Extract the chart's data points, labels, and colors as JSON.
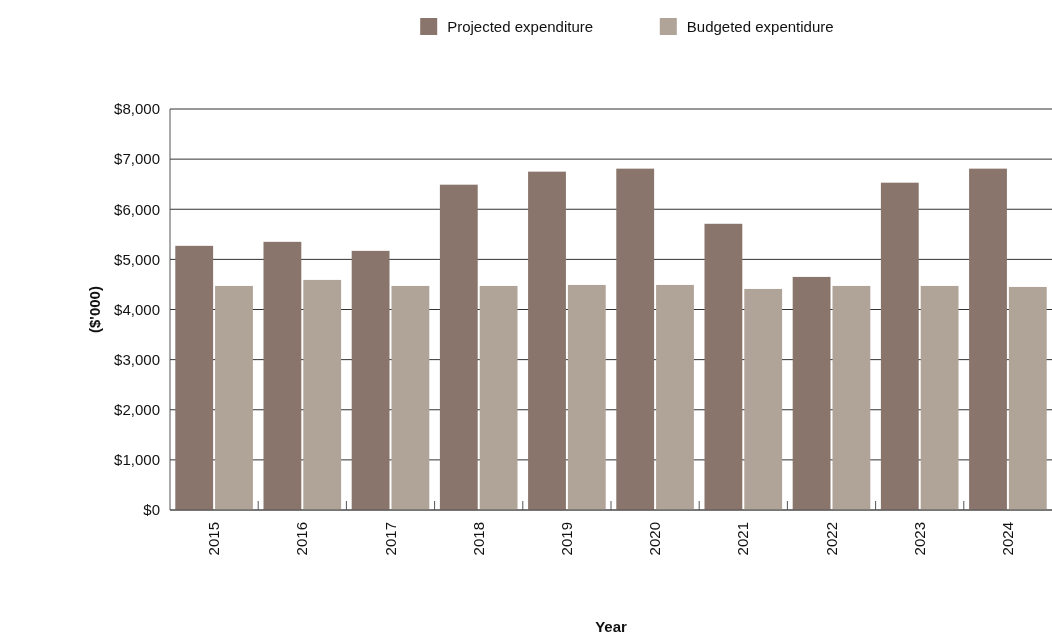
{
  "chart_data": {
    "type": "bar",
    "xlabel": "Year",
    "ylabel": "($'000)",
    "categories": [
      "2015",
      "2016",
      "2017",
      "2018",
      "2019",
      "2020",
      "2021",
      "2022",
      "2023",
      "2024"
    ],
    "series": [
      {
        "name": "Projected expenditure",
        "color": "#89756b",
        "values": [
          5270,
          5350,
          5170,
          6490,
          6750,
          6810,
          5710,
          4650,
          6530,
          6810
        ]
      },
      {
        "name": "Budgeted expentidure",
        "color": "#b0a398",
        "values": [
          4470,
          4590,
          4470,
          4470,
          4490,
          4490,
          4410,
          4470,
          4470,
          4450
        ]
      }
    ],
    "ylim": [
      0,
      8000
    ],
    "yticks": [
      {
        "value": 0,
        "label": "$0"
      },
      {
        "value": 1000,
        "label": "$1,000"
      },
      {
        "value": 2000,
        "label": "$2,000"
      },
      {
        "value": 3000,
        "label": "$3,000"
      },
      {
        "value": 4000,
        "label": "$4,000"
      },
      {
        "value": 5000,
        "label": "$5,000"
      },
      {
        "value": 6000,
        "label": "$6,000"
      },
      {
        "value": 7000,
        "label": "$7,000"
      },
      {
        "value": 8000,
        "label": "$8,000"
      }
    ],
    "grid": "y",
    "legend": "top"
  }
}
